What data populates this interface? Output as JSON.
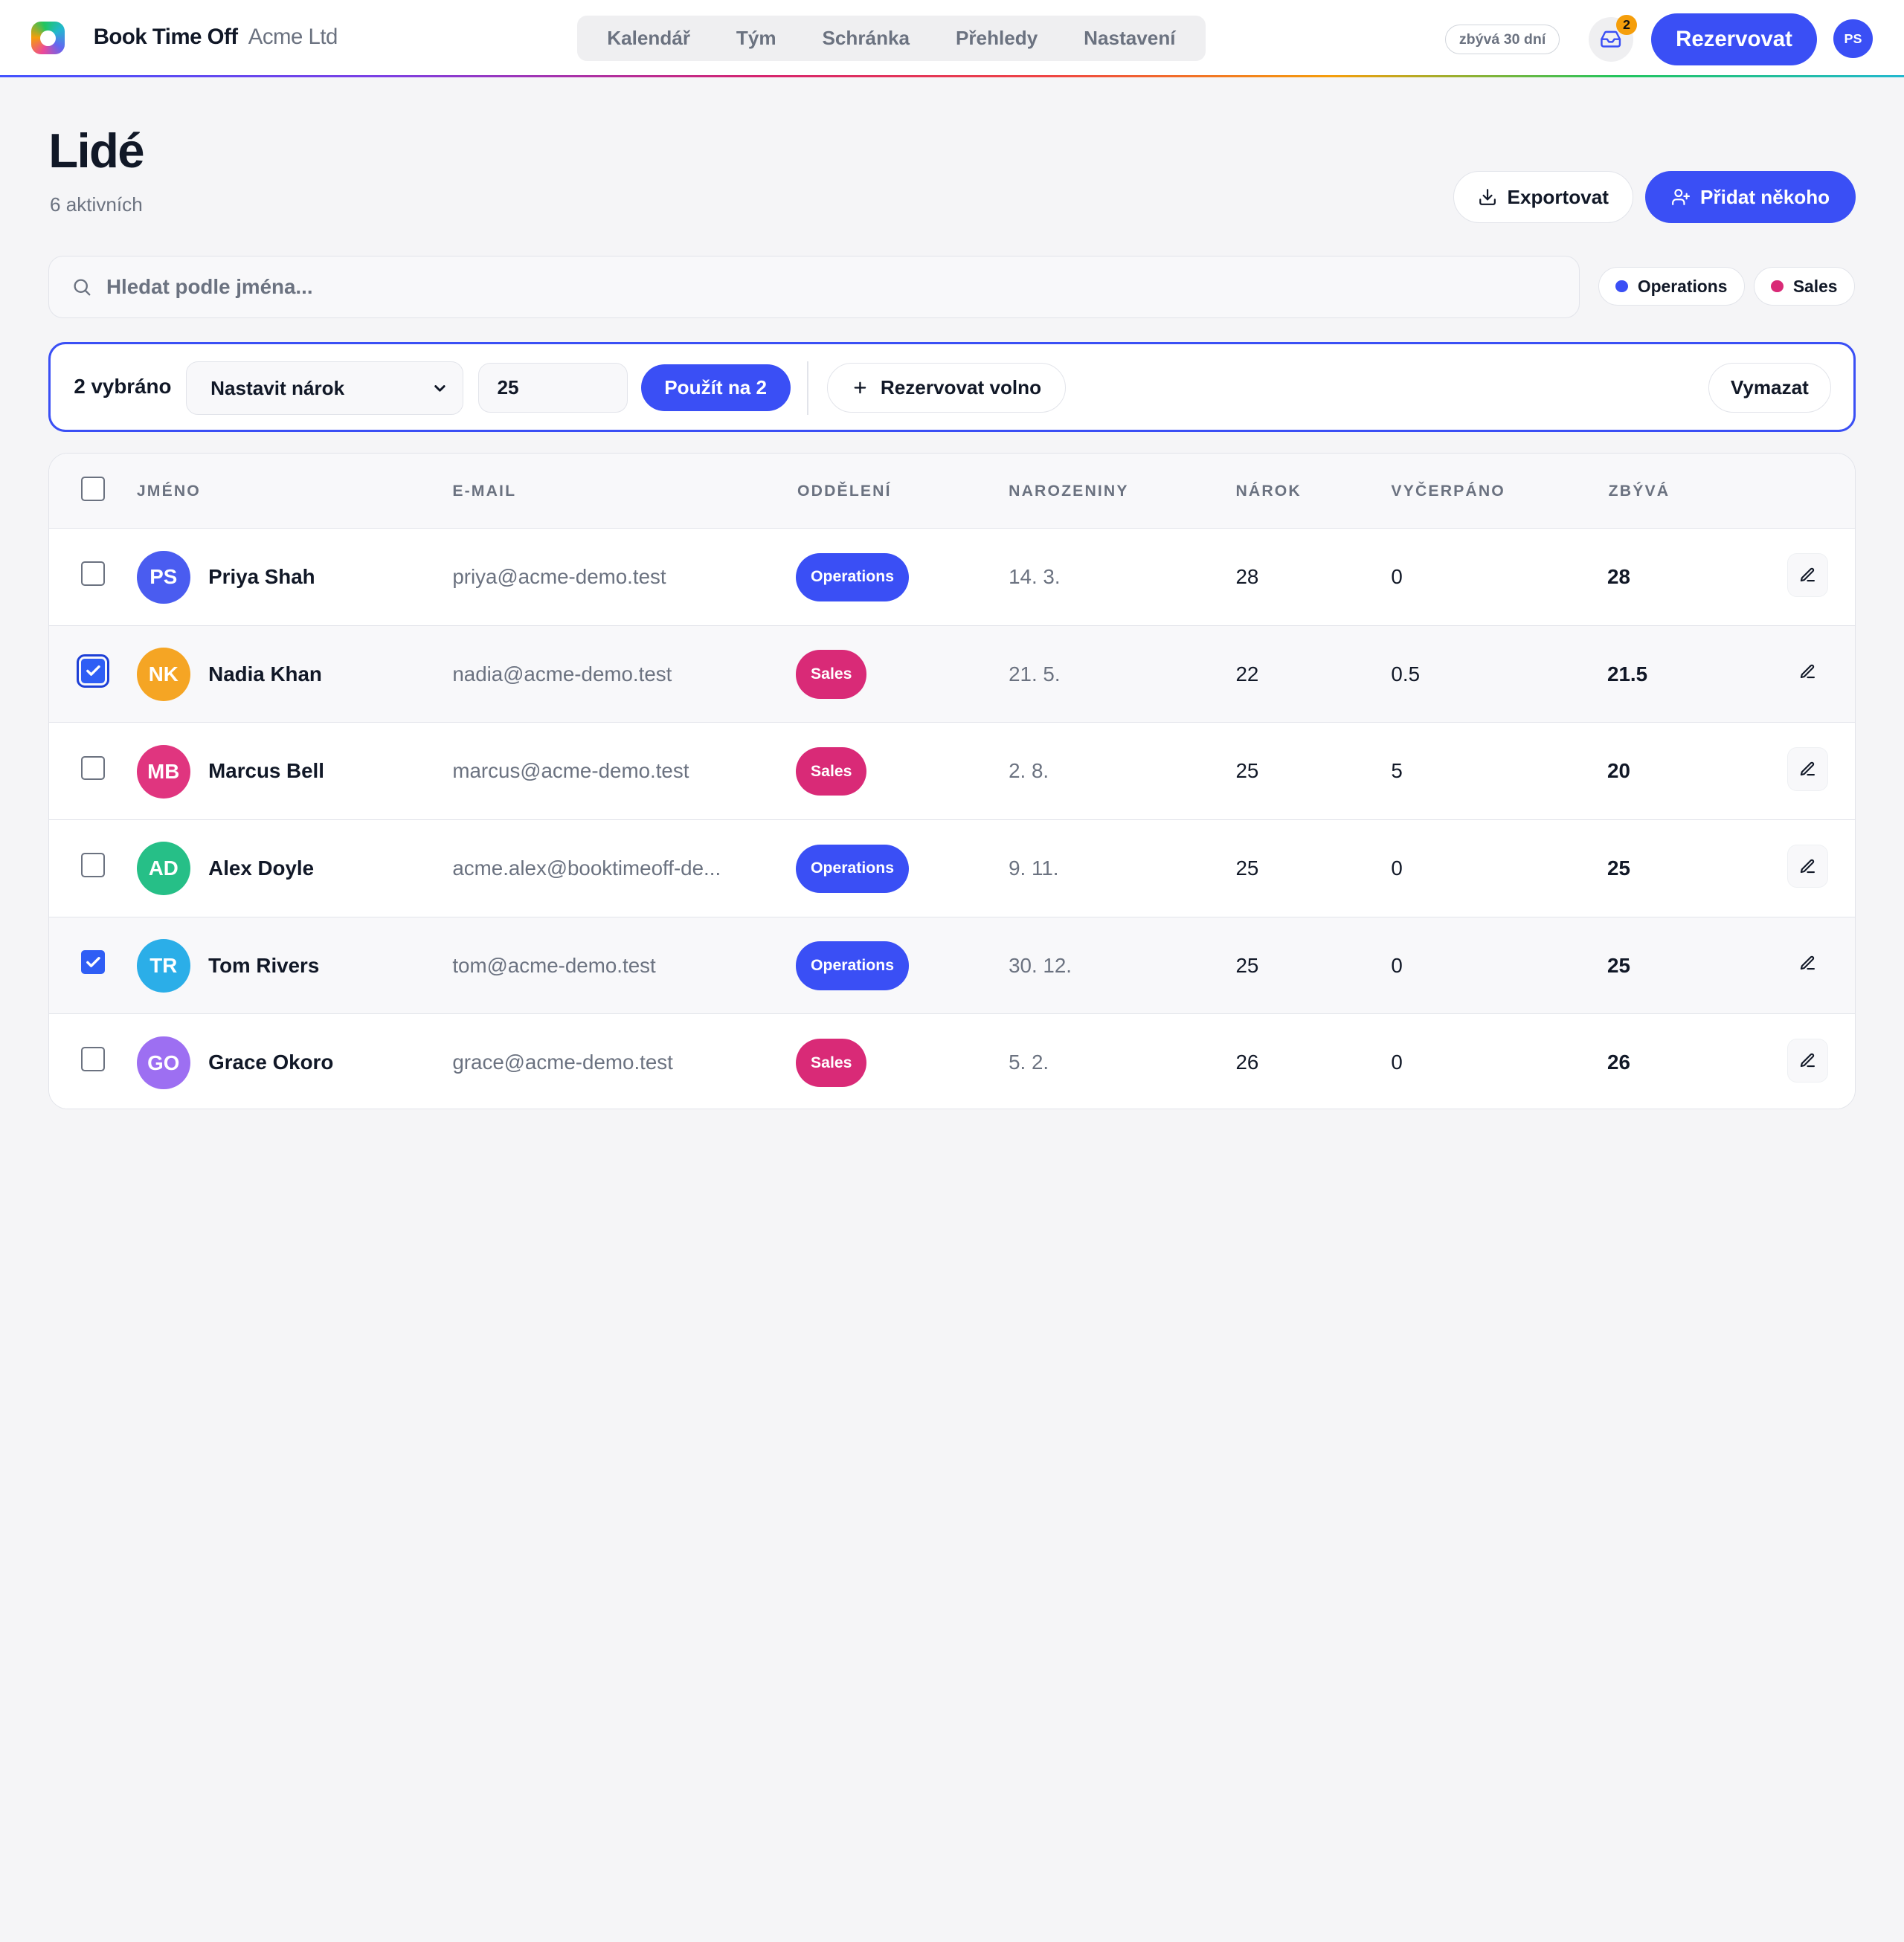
{
  "app": {
    "brand": "Book Time Off",
    "company": "Acme Ltd",
    "nav": [
      "Kalendář",
      "Tým",
      "Schránka",
      "Přehledy",
      "Nastavení"
    ],
    "trial": "zbývá 30 dní",
    "inbox_count": "2",
    "book_label": "Rezervovat",
    "user_initials": "PS"
  },
  "header": {
    "title": "Lidé",
    "subtitle": "6 aktivních",
    "export_label": "Exportovat",
    "add_label": "Přidat někoho"
  },
  "search": {
    "placeholder": "Hledat podle jména..."
  },
  "filters": [
    {
      "label": "Operations",
      "color": "#3a4ff5"
    },
    {
      "label": "Sales",
      "color": "#d92a77"
    }
  ],
  "bulk": {
    "selected": "2 vybráno",
    "action": "Nastavit nárok",
    "value": "25",
    "apply": "Použít na 2",
    "book_off": "Rezervovat volno",
    "clear": "Vymazat"
  },
  "table": {
    "columns": [
      "JMÉNO",
      "E-MAIL",
      "ODDĚLENÍ",
      "NAROZENINY",
      "NÁROK",
      "VYČERPÁNO",
      "ZBÝVÁ"
    ],
    "rows": [
      {
        "initials": "PS",
        "avatar_color": "#4a5cf0",
        "name": "Priya Shah",
        "email": "priya@acme-demo.test",
        "dept": "Operations",
        "birthday": "14. 3.",
        "allowance": "28",
        "used": "0",
        "left": "28",
        "checked": false
      },
      {
        "initials": "NK",
        "avatar_color": "#f5a524",
        "name": "Nadia Khan",
        "email": "nadia@acme-demo.test",
        "dept": "Sales",
        "birthday": "21. 5.",
        "allowance": "22",
        "used": "0.5",
        "left": "21.5",
        "checked": true
      },
      {
        "initials": "MB",
        "avatar_color": "#e0357f",
        "name": "Marcus Bell",
        "email": "marcus@acme-demo.test",
        "dept": "Sales",
        "birthday": "2. 8.",
        "allowance": "25",
        "used": "5",
        "left": "20",
        "checked": false
      },
      {
        "initials": "AD",
        "avatar_color": "#26bf87",
        "name": "Alex Doyle",
        "email": "acme.alex@booktimeoff-de...",
        "dept": "Operations",
        "birthday": "9. 11.",
        "allowance": "25",
        "used": "0",
        "left": "25",
        "checked": false
      },
      {
        "initials": "TR",
        "avatar_color": "#2baee8",
        "name": "Tom Rivers",
        "email": "tom@acme-demo.test",
        "dept": "Operations",
        "birthday": "30. 12.",
        "allowance": "25",
        "used": "0",
        "left": "25",
        "checked": true
      },
      {
        "initials": "GO",
        "avatar_color": "#9d6ff2",
        "name": "Grace Okoro",
        "email": "grace@acme-demo.test",
        "dept": "Sales",
        "birthday": "5. 2.",
        "allowance": "26",
        "used": "0",
        "left": "26",
        "checked": false
      }
    ]
  }
}
